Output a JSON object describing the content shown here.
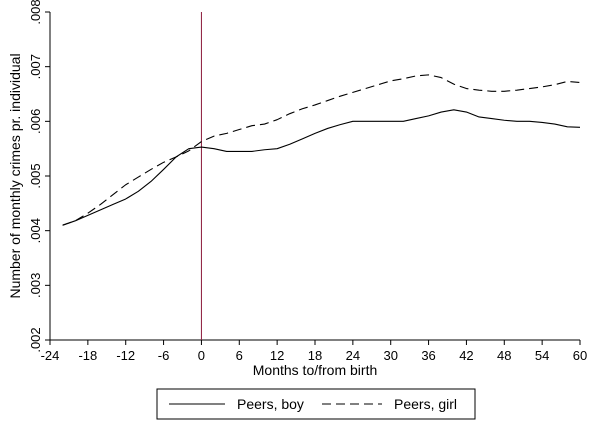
{
  "chart_data": {
    "type": "line",
    "xlabel": "Months to/from birth",
    "ylabel": "Number of monthly crimes pr. individual",
    "xlim": [
      -24,
      60
    ],
    "ylim": [
      0.002,
      0.008
    ],
    "x_ticks": [
      -24,
      -18,
      -12,
      -6,
      0,
      6,
      12,
      18,
      24,
      30,
      36,
      42,
      48,
      54,
      60
    ],
    "x_tick_labels": [
      "-24",
      "-18",
      "-12",
      "-6",
      "0",
      "6",
      "12",
      "18",
      "24",
      "30",
      "36",
      "42",
      "48",
      "54",
      "60"
    ],
    "y_ticks": [
      0.002,
      0.003,
      0.004,
      0.005,
      0.006,
      0.007,
      0.008
    ],
    "y_tick_labels": [
      ".002",
      ".003",
      ".004",
      ".005",
      ".006",
      ".007",
      ".008"
    ],
    "vertical_line": {
      "x": 0,
      "color": "#8b1a3a"
    },
    "grid": false,
    "legend_position": "bottom",
    "series": [
      {
        "name": "Peers, boy",
        "style": "solid",
        "color": "#000000",
        "x": [
          -22,
          -20,
          -18,
          -16,
          -14,
          -12,
          -10,
          -8,
          -6,
          -4,
          -2,
          0,
          2,
          4,
          6,
          8,
          10,
          12,
          14,
          16,
          18,
          20,
          22,
          24,
          26,
          28,
          30,
          32,
          34,
          36,
          38,
          40,
          42,
          44,
          46,
          48,
          50,
          52,
          54,
          56,
          58,
          60
        ],
        "y": [
          0.0041,
          0.00418,
          0.00428,
          0.00438,
          0.00448,
          0.00458,
          0.00472,
          0.0049,
          0.00512,
          0.00535,
          0.0055,
          0.00553,
          0.0055,
          0.00545,
          0.00545,
          0.00545,
          0.00548,
          0.0055,
          0.00558,
          0.00568,
          0.00578,
          0.00587,
          0.00594,
          0.006,
          0.006,
          0.006,
          0.006,
          0.006,
          0.00605,
          0.0061,
          0.00617,
          0.00621,
          0.00617,
          0.00608,
          0.00605,
          0.00602,
          0.006,
          0.006,
          0.00598,
          0.00595,
          0.0059,
          0.00589
        ]
      },
      {
        "name": "Peers, girl",
        "style": "dashed",
        "color": "#000000",
        "x": [
          -22,
          -20,
          -18,
          -16,
          -14,
          -12,
          -10,
          -8,
          -6,
          -4,
          -2,
          0,
          2,
          4,
          6,
          8,
          10,
          12,
          14,
          16,
          18,
          20,
          22,
          24,
          26,
          28,
          30,
          32,
          34,
          36,
          38,
          40,
          42,
          44,
          46,
          48,
          50,
          52,
          54,
          56,
          58,
          60
        ],
        "y": [
          0.0041,
          0.00418,
          0.00432,
          0.00448,
          0.00466,
          0.00484,
          0.00498,
          0.00512,
          0.00525,
          0.00535,
          0.00546,
          0.00563,
          0.00573,
          0.00578,
          0.00585,
          0.00592,
          0.00595,
          0.00603,
          0.00614,
          0.00623,
          0.0063,
          0.00638,
          0.00646,
          0.00653,
          0.0066,
          0.00667,
          0.00674,
          0.00678,
          0.00683,
          0.00685,
          0.0068,
          0.00668,
          0.0066,
          0.00657,
          0.00655,
          0.00655,
          0.00657,
          0.0066,
          0.00663,
          0.00667,
          0.00673,
          0.00671
        ]
      }
    ]
  }
}
